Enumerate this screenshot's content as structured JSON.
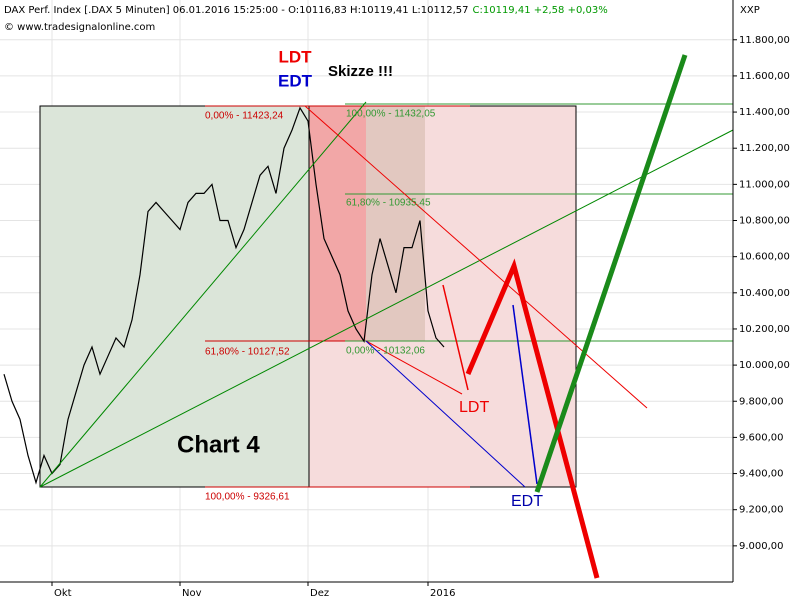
{
  "header": {
    "instrument": "DAX Perf. Index [.DAX  5 Minuten] 06.01.2016 15:25:00 - O:10116,83 H:10119,41 L:10112,57",
    "close": "C:10119,41 +2,58 +0,03%",
    "source": "© www.tradesignalonline.com",
    "axis_code": "XXP"
  },
  "annotations": {
    "ldt_top": "LDT",
    "edt_top": "EDT",
    "sketch": "Skizze !!!",
    "chart_name": "Chart 4",
    "fib_left_0": "0,00% - 11423,24",
    "fib_left_618": "61,80% - 10127,52",
    "fib_left_100": "100,00% - 9326,61",
    "fib_right_100": "100,00% - 11432,05",
    "fib_right_618": "61,80% - 10935,45",
    "fib_right_0": "0,00% - 10132,06",
    "ldt_bottom": "LDT",
    "edt_bottom": "EDT"
  },
  "chart_data": {
    "type": "line",
    "color": "#000000",
    "grid": true,
    "categories": [
      null,
      null,
      null,
      null,
      null,
      null,
      "Okt",
      null,
      null,
      null,
      null,
      null,
      null,
      null,
      null,
      null,
      null,
      null,
      null,
      null,
      null,
      null,
      "Nov",
      null,
      null,
      null,
      null,
      null,
      null,
      null,
      null,
      null,
      null,
      null,
      null,
      null,
      null,
      null,
      "Dez",
      null,
      null,
      null,
      null,
      null,
      null,
      null,
      null,
      null,
      null,
      null,
      null,
      null,
      null,
      "2016",
      null,
      null
    ],
    "values": [
      9950,
      9800,
      9700,
      9500,
      9350,
      9500,
      9400,
      9450,
      9700,
      9850,
      10000,
      10100,
      9950,
      10050,
      10150,
      10100,
      10250,
      10500,
      10850,
      10900,
      10850,
      10800,
      10750,
      10900,
      10950,
      10950,
      11000,
      10800,
      10800,
      10650,
      10750,
      10900,
      11050,
      11100,
      10950,
      11200,
      11300,
      11423,
      11350,
      11000,
      10700,
      10600,
      10500,
      10300,
      10200,
      10132,
      10500,
      10700,
      10550,
      10400,
      10650,
      10650,
      10800,
      10300,
      10150,
      10100
    ],
    "ylim": [
      8800,
      12020
    ],
    "yticks": [
      {
        "value": 9000,
        "label": "9.000,00"
      },
      {
        "value": 9200,
        "label": "9.200,00"
      },
      {
        "value": 9400,
        "label": "9.400,00"
      },
      {
        "value": 9600,
        "label": "9.600,00"
      },
      {
        "value": 9800,
        "label": "9.800,00"
      },
      {
        "value": 10000,
        "label": "10.000,00"
      },
      {
        "value": 10200,
        "label": "10.200,00"
      },
      {
        "value": 10400,
        "label": "10.400,00"
      },
      {
        "value": 10600,
        "label": "10.600,00"
      },
      {
        "value": 10800,
        "label": "10.800,00"
      },
      {
        "value": 11000,
        "label": "11.000,00"
      },
      {
        "value": 11200,
        "label": "11.200,00"
      },
      {
        "value": 11400,
        "label": "11.400,00"
      },
      {
        "value": 11600,
        "label": "11.600,00"
      },
      {
        "value": 11800,
        "label": "11.800,00"
      }
    ]
  }
}
